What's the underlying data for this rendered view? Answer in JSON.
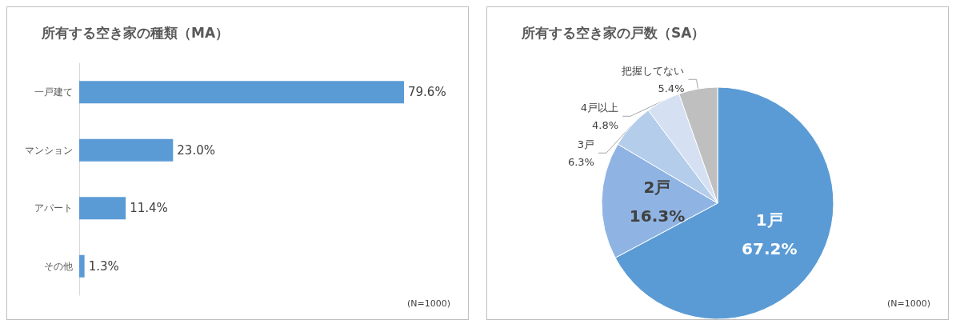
{
  "chart_data": [
    {
      "type": "bar",
      "orientation": "horizontal",
      "title": "所有する空き家の種類（MA）",
      "categories": [
        "一戸建て",
        "マンション",
        "アパート",
        "その他"
      ],
      "values": [
        79.6,
        23.0,
        11.4,
        1.3
      ],
      "value_labels": [
        "79.6%",
        "23.0%",
        "11.4%",
        "1.3%"
      ],
      "color": "#5b9bd5",
      "annotations": [
        "(N=1000)"
      ],
      "legend": false
    },
    {
      "type": "pie",
      "title": "所有する空き家の戸数（SA）",
      "categories": [
        "1戸",
        "2戸",
        "3戸",
        "4戸以上",
        "把握してない"
      ],
      "values": [
        67.2,
        16.3,
        6.3,
        4.8,
        5.4
      ],
      "value_labels": [
        "67.2%",
        "16.3%",
        "6.3%",
        "4.8%",
        "5.4%"
      ],
      "colors": [
        "#5b9bd5",
        "#8fb4e3",
        "#b4cdeb",
        "#d5e1f3",
        "#bfbfbf"
      ],
      "annotations": [
        "(N=1000)"
      ],
      "legend": false
    }
  ]
}
